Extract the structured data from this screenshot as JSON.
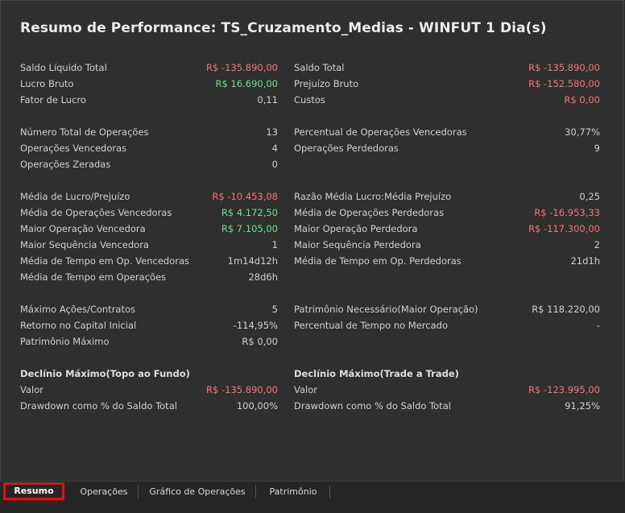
{
  "title": "Resumo de Performance: TS_Cruzamento_Medias - WINFUT 1 Dia(s)",
  "left": [
    {
      "label": "Saldo Líquido Total",
      "value": "R$ -135.890,00",
      "tone": "neg"
    },
    {
      "label": "Lucro Bruto",
      "value": "R$ 16.690,00",
      "tone": "pos"
    },
    {
      "label": "Fator de Lucro",
      "value": "0,11",
      "tone": ""
    },
    {
      "label": "Número Total de Operações",
      "value": "13",
      "tone": ""
    },
    {
      "label": "Operações Vencedoras",
      "value": "4",
      "tone": ""
    },
    {
      "label": "Operações Zeradas",
      "value": "0",
      "tone": ""
    },
    {
      "label": "Média de Lucro/Prejuízo",
      "value": "R$ -10.453,08",
      "tone": "neg"
    },
    {
      "label": "Média de Operações Vencedoras",
      "value": "R$ 4.172,50",
      "tone": "pos"
    },
    {
      "label": "Maior Operação Vencedora",
      "value": "R$ 7.105,00",
      "tone": "pos"
    },
    {
      "label": "Maior Sequência Vencedora",
      "value": "1",
      "tone": ""
    },
    {
      "label": "Média de Tempo em Op. Vencedoras",
      "value": "1m14d12h",
      "tone": ""
    },
    {
      "label": "Média de Tempo em Operações",
      "value": "28d6h",
      "tone": ""
    },
    {
      "label": "Máximo Ações/Contratos",
      "value": "5",
      "tone": ""
    },
    {
      "label": "Retorno no Capital Inicial",
      "value": "-114,95%",
      "tone": ""
    },
    {
      "label": "Patrimônio Máximo",
      "value": "R$ 0,00",
      "tone": ""
    }
  ],
  "right": [
    {
      "label": "Saldo Total",
      "value": "R$ -135.890,00",
      "tone": "neg"
    },
    {
      "label": "Prejuízo Bruto",
      "value": "R$ -152.580,00",
      "tone": "neg"
    },
    {
      "label": "Custos",
      "value": "R$ 0,00",
      "tone": "neg"
    },
    {
      "label": "Percentual de Operações Vencedoras",
      "value": "30,77%",
      "tone": ""
    },
    {
      "label": "Operações Perdedoras",
      "value": "9",
      "tone": ""
    },
    {
      "label": "Razão Média Lucro:Média Prejuízo",
      "value": "0,25",
      "tone": ""
    },
    {
      "label": "Média de Operações Perdedoras",
      "value": "R$ -16.953,33",
      "tone": "neg"
    },
    {
      "label": "Maior Operação Perdedora",
      "value": "R$ -117.300,00",
      "tone": "neg"
    },
    {
      "label": "Maior Sequência Perdedora",
      "value": "2",
      "tone": ""
    },
    {
      "label": "Média de Tempo em Op. Perdedoras",
      "value": "21d1h",
      "tone": ""
    },
    {
      "label": "Patrimônio Necessário(Maior Operação)",
      "value": "R$ 118.220,00",
      "tone": ""
    },
    {
      "label": "Percentual de Tempo no Mercado",
      "value": "-",
      "tone": ""
    }
  ],
  "drawdown_left": {
    "heading": "Declínio Máximo(Topo ao Fundo)",
    "rows": [
      {
        "label": "Valor",
        "value": "R$ -135.890,00",
        "tone": "neg"
      },
      {
        "label": "Drawdown como % do Saldo Total",
        "value": "100,00%",
        "tone": ""
      }
    ]
  },
  "drawdown_right": {
    "heading": "Declínio Máximo(Trade a Trade)",
    "rows": [
      {
        "label": "Valor",
        "value": "R$ -123.995,00",
        "tone": "neg"
      },
      {
        "label": "Drawdown como % do Saldo Total",
        "value": "91,25%",
        "tone": ""
      }
    ]
  },
  "tabs": [
    "Resumo",
    "Operações",
    "Gráfico de Operações",
    "Patrimônio"
  ],
  "active_tab": "Resumo",
  "colors": {
    "negative": "#f07878",
    "positive": "#6fe08a",
    "highlight": "#e0101a"
  }
}
